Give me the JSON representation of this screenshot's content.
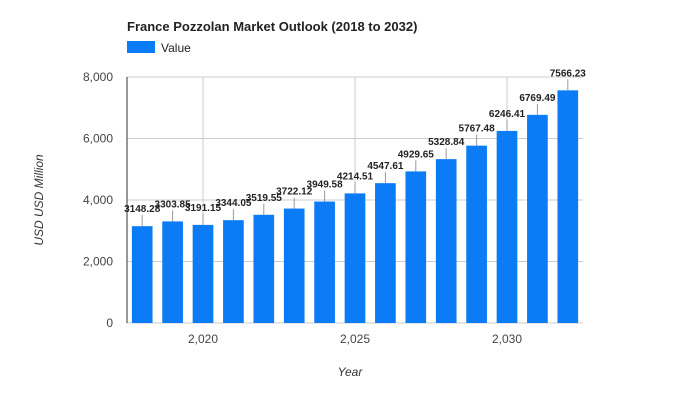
{
  "colors": {
    "bar": "#0b7cf5",
    "grid": "#cccccc",
    "leader": "#999999"
  },
  "legend": {
    "label": "Value"
  },
  "chart_data": {
    "type": "bar",
    "title": "France Pozzolan Market Outlook (2018 to 2032)",
    "xlabel": "Year",
    "ylabel": "USD USD Million",
    "x": [
      2018,
      2019,
      2020,
      2021,
      2022,
      2023,
      2024,
      2025,
      2026,
      2027,
      2028,
      2029,
      2030,
      2031,
      2032
    ],
    "series": [
      {
        "name": "Value",
        "values": [
          3148.28,
          3303.85,
          3191.15,
          3344.05,
          3519.55,
          3722.12,
          3949.58,
          4214.51,
          4547.61,
          4929.65,
          5328.84,
          5767.48,
          6246.41,
          6769.49,
          7566.23
        ],
        "labels": [
          "3148.28",
          "3303.85",
          "3191.15",
          "3344.05",
          "3519.55",
          "3722.12",
          "3949.58",
          "4214.51",
          "4547.61",
          "4929.65",
          "5328.84",
          "5767.48",
          "6246.41",
          "6769.49",
          "7566.23"
        ]
      }
    ],
    "ylim": [
      0,
      8000
    ],
    "yticks": [
      0,
      2000,
      4000,
      6000,
      8000
    ],
    "ytick_labels": [
      "0",
      "2,000",
      "4,000",
      "6,000",
      "8,000"
    ],
    "xticks": [
      2020,
      2025,
      2030
    ],
    "xtick_labels": [
      "2,020",
      "2,025",
      "2,030"
    ],
    "legend_position": "top-left",
    "grid": true
  }
}
